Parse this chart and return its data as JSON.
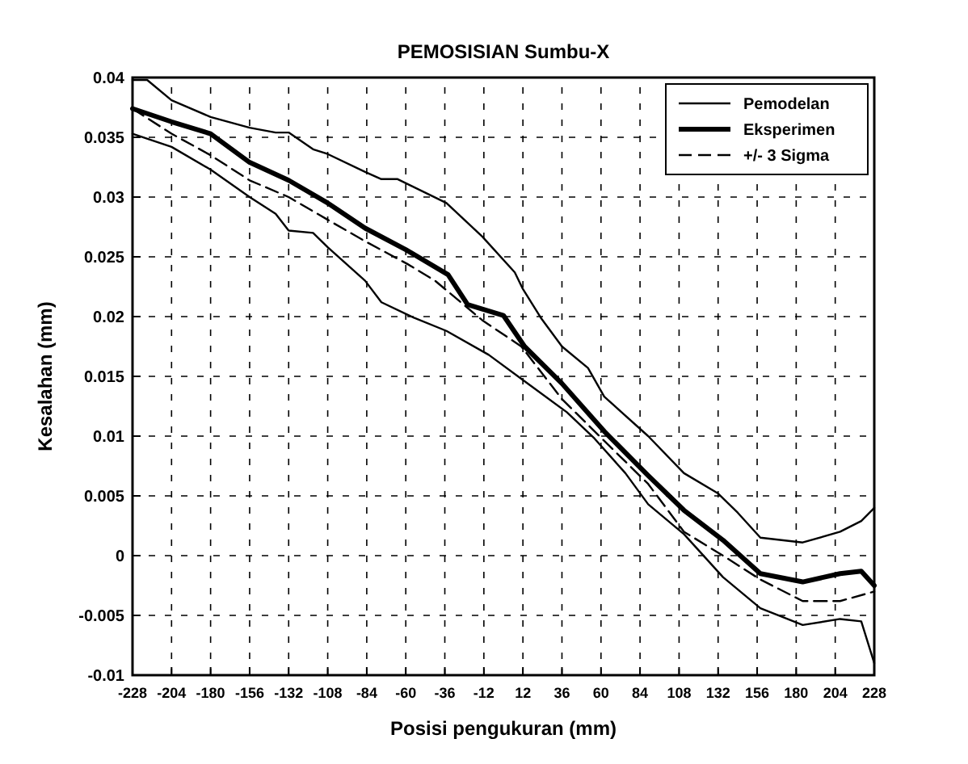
{
  "chart_data": {
    "type": "line",
    "title": "PEMOSISIAN Sumbu-X",
    "xlabel": "Posisi pengukuran (mm)",
    "ylabel": "Kesalahan (mm)",
    "xlim": [
      -228,
      228
    ],
    "xticks": [
      -228,
      -204,
      -180,
      -156,
      -132,
      -108,
      -84,
      -60,
      -36,
      -12,
      12,
      36,
      60,
      84,
      108,
      132,
      156,
      180,
      204,
      228
    ],
    "ylim": [
      -0.01,
      0.04
    ],
    "yticks": [
      -0.01,
      -0.005,
      0,
      0.005,
      0.01,
      0.015,
      0.02,
      0.025,
      0.03,
      0.035,
      0.04
    ],
    "grid": true,
    "legend": "top right",
    "series": [
      {
        "name": "Pemodelan",
        "color": "#000000",
        "line_style": "solid",
        "x": [
          -228,
          -219,
          -204,
          -180,
          -156,
          -140,
          -132,
          -117,
          -108,
          -85,
          -75,
          -65,
          -35,
          -13,
          7,
          12,
          23,
          36,
          52,
          62,
          89,
          111,
          132,
          144,
          158,
          184,
          207,
          220,
          228
        ],
        "values": [
          0.0398,
          0.0398,
          0.0381,
          0.0367,
          0.0358,
          0.0354,
          0.0354,
          0.034,
          0.0336,
          0.0321,
          0.0315,
          0.0315,
          0.0295,
          0.0267,
          0.0237,
          0.0223,
          0.0199,
          0.0175,
          0.0157,
          0.0133,
          0.01,
          0.0069,
          0.0052,
          0.0036,
          0.0015,
          0.0011,
          0.002,
          0.0029,
          0.004
        ]
      },
      {
        "name": "Eksperimen",
        "color": "#000000",
        "line_style": "solid",
        "x": [
          -228,
          -204,
          -180,
          -156,
          -132,
          -108,
          -85,
          -60,
          -34,
          -22,
          0,
          13,
          36,
          62,
          89,
          111,
          135,
          158,
          184,
          207,
          220,
          228
        ],
        "values": [
          0.0374,
          0.0363,
          0.0353,
          0.0329,
          0.0314,
          0.0295,
          0.0274,
          0.0256,
          0.0235,
          0.021,
          0.0201,
          0.0175,
          0.0144,
          0.0104,
          0.0067,
          0.0038,
          0.0013,
          -0.0015,
          -0.0022,
          -0.0015,
          -0.0013,
          -0.0025
        ]
      },
      {
        "name": "+/- 3 Sigma",
        "color": "#000000",
        "line_style": "dashed",
        "x": [
          -228,
          -204,
          -180,
          -156,
          -132,
          -108,
          -85,
          -59,
          -42,
          -13,
          11,
          36,
          62,
          89,
          111,
          135,
          158,
          184,
          207,
          228
        ],
        "values": [
          0.0374,
          0.0353,
          0.0335,
          0.0314,
          0.03,
          0.0281,
          0.0263,
          0.0244,
          0.023,
          0.0197,
          0.0175,
          0.0131,
          0.0096,
          0.006,
          0.002,
          0.0,
          -0.002,
          -0.0038,
          -0.0038,
          -0.003
        ]
      },
      {
        "color": "#000000",
        "line_style": "solid",
        "x": [
          -228,
          -204,
          -180,
          -156,
          -140,
          -132,
          -117,
          -108,
          -85,
          -75,
          -55,
          -35,
          -9,
          13,
          39,
          56,
          75,
          89,
          111,
          135,
          158,
          184,
          207,
          220,
          228
        ],
        "values": [
          0.0353,
          0.0342,
          0.0323,
          0.03,
          0.0286,
          0.0272,
          0.027,
          0.0258,
          0.023,
          0.0212,
          0.0199,
          0.0188,
          0.0168,
          0.0146,
          0.012,
          0.0098,
          0.0069,
          0.0043,
          0.0018,
          -0.0018,
          -0.0044,
          -0.0058,
          -0.0053,
          -0.0055,
          -0.009
        ]
      }
    ]
  }
}
